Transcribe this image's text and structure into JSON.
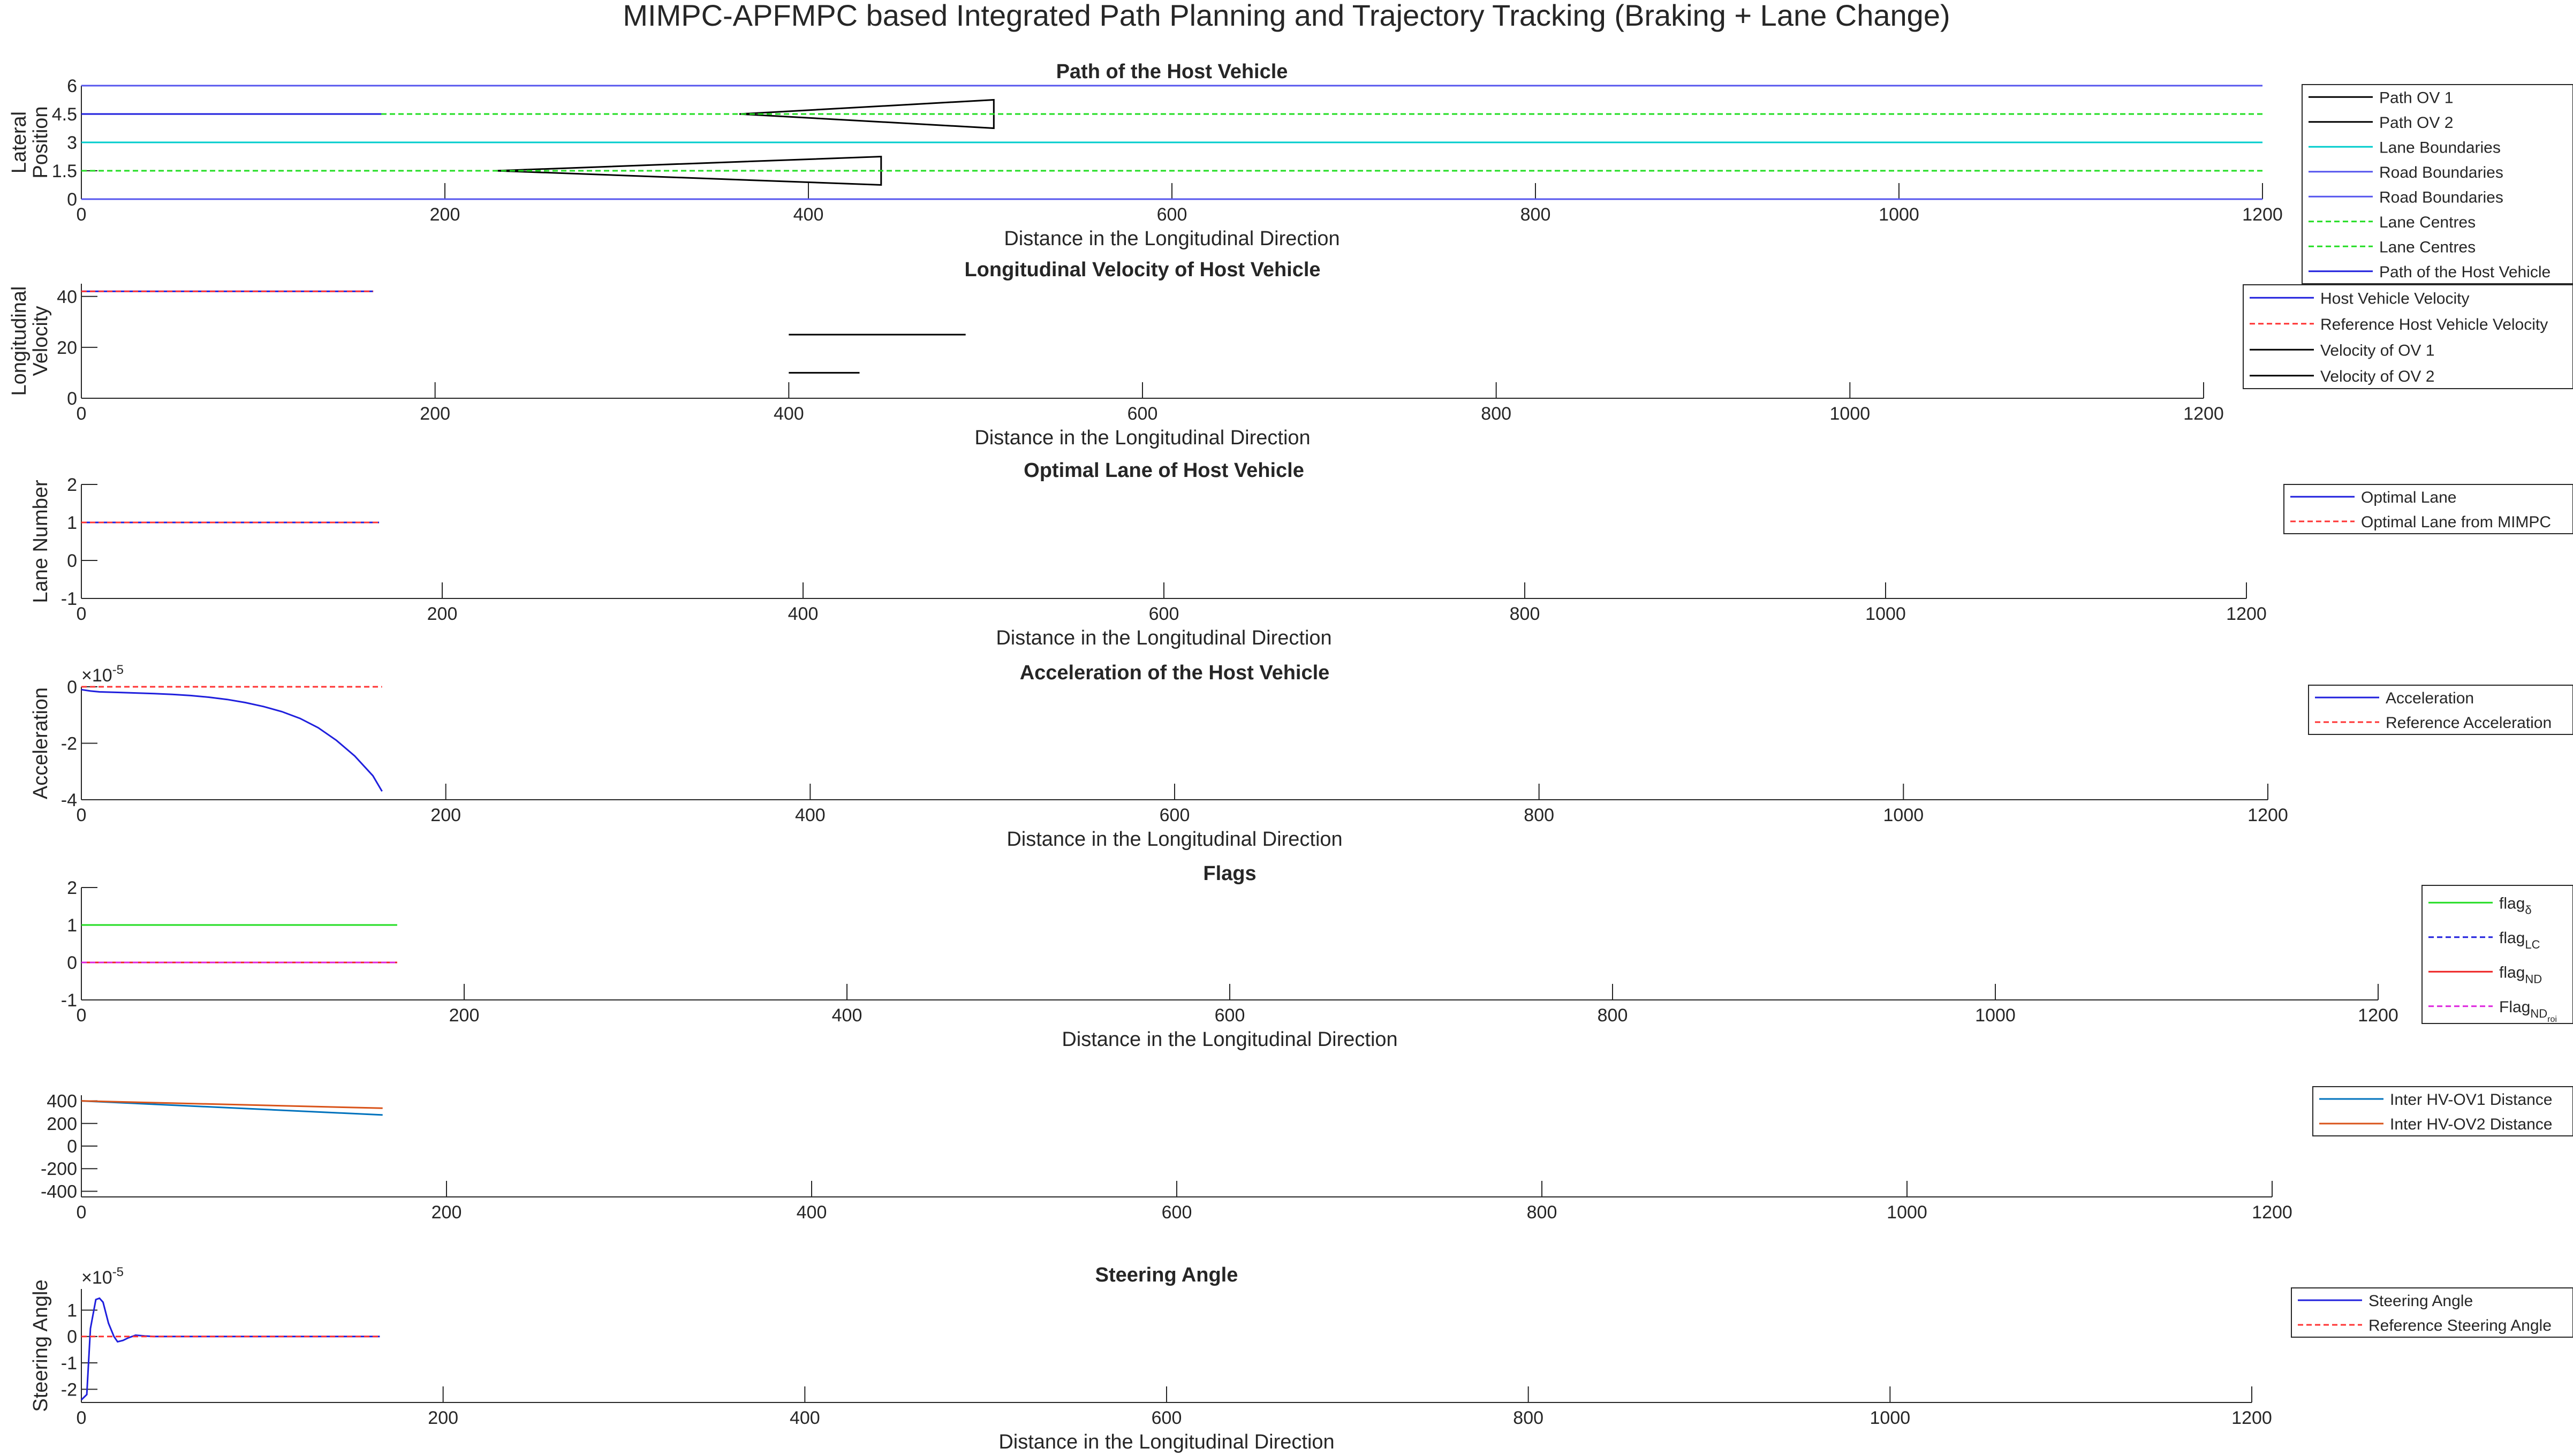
{
  "figure": {
    "title": "MIMPC-APFMPC based Integrated Path Planning and Trajectory Tracking (Braking + Lane Change)"
  },
  "chart_data": [
    {
      "type": "line",
      "title": "Path of the Host Vehicle",
      "xlabel": "Distance in the Longitudinal Direction",
      "ylabel": [
        "Lateral",
        "Position"
      ],
      "xlim": [
        0,
        1200
      ],
      "ylim": [
        0,
        6
      ],
      "xticks": [
        0,
        200,
        400,
        600,
        800,
        1000,
        1200
      ],
      "yticks": [
        0,
        1.5,
        3,
        4.5,
        6
      ],
      "yticklabels": [
        "0",
        "1.5",
        "3",
        "4.5",
        "6"
      ],
      "legend_position": "right",
      "series": [
        {
          "name": "Path OV 1",
          "color": "#000000",
          "dash": "solid",
          "x": [
            362,
            502,
            502,
            362
          ],
          "y": [
            4.5,
            5.25,
            3.75,
            4.5
          ]
        },
        {
          "name": "Path OV 2",
          "color": "#000000",
          "dash": "solid",
          "x": [
            228,
            440,
            440,
            228
          ],
          "y": [
            1.5,
            2.25,
            0.75,
            1.5
          ]
        },
        {
          "name": "Lane Boundaries",
          "color": "#00cccc",
          "dash": "solid",
          "x": [
            0,
            1200
          ],
          "y": [
            3,
            3
          ]
        },
        {
          "name": "Road Boundaries",
          "color": "#5555ee",
          "dash": "solid",
          "x": [
            0,
            1200
          ],
          "y": [
            6,
            6
          ]
        },
        {
          "name": "Road Boundaries",
          "color": "#5555ee",
          "dash": "solid",
          "x": [
            0,
            1200
          ],
          "y": [
            0,
            0
          ]
        },
        {
          "name": "Lane Centres",
          "color": "#22dd22",
          "dash": "dashed",
          "x": [
            0,
            1200
          ],
          "y": [
            4.5,
            4.5
          ]
        },
        {
          "name": "Lane Centres",
          "color": "#22dd22",
          "dash": "dashed",
          "x": [
            0,
            1200
          ],
          "y": [
            1.5,
            1.5
          ]
        },
        {
          "name": "Path of the Host Vehicle",
          "color": "#1f1fdd",
          "dash": "solid",
          "x": [
            0,
            165
          ],
          "y": [
            4.5,
            4.5
          ]
        }
      ]
    },
    {
      "type": "line",
      "title": "Longitudinal Velocity of Host Vehicle",
      "xlabel": "Distance in the Longitudinal Direction",
      "ylabel": [
        "Longitudinal",
        "Velocity"
      ],
      "xlim": [
        0,
        1200
      ],
      "ylim": [
        0,
        45
      ],
      "xticks": [
        0,
        200,
        400,
        600,
        800,
        1000,
        1200
      ],
      "yticks": [
        0,
        20,
        40
      ],
      "legend_position": "right",
      "series": [
        {
          "name": "Host Vehicle Velocity",
          "color": "#1f1fdd",
          "dash": "solid",
          "x": [
            0,
            165
          ],
          "y": [
            42,
            42
          ]
        },
        {
          "name": "Reference Host Vehicle Velocity",
          "color": "#ff3333",
          "dash": "dashed",
          "x": [
            0,
            165
          ],
          "y": [
            42,
            42
          ]
        },
        {
          "name": "Velocity of OV 1",
          "color": "#000000",
          "dash": "solid",
          "x": [
            400,
            500
          ],
          "y": [
            25,
            25
          ]
        },
        {
          "name": "Velocity of OV 2",
          "color": "#000000",
          "dash": "solid",
          "x": [
            400,
            440
          ],
          "y": [
            10,
            10
          ]
        }
      ]
    },
    {
      "type": "line",
      "title": "Optimal Lane of Host Vehicle",
      "xlabel": "Distance in the Longitudinal Direction",
      "ylabel": [
        "Lane Number"
      ],
      "xlim": [
        0,
        1200
      ],
      "ylim": [
        -1,
        2
      ],
      "xticks": [
        0,
        200,
        400,
        600,
        800,
        1000,
        1200
      ],
      "yticks": [
        -1,
        0,
        1,
        2
      ],
      "legend_position": "right",
      "series": [
        {
          "name": "Optimal Lane",
          "color": "#1f1fdd",
          "dash": "solid",
          "x": [
            0,
            165
          ],
          "y": [
            1,
            1
          ]
        },
        {
          "name": "Optimal Lane from MIMPC",
          "color": "#ff3333",
          "dash": "dashed",
          "x": [
            0,
            165
          ],
          "y": [
            1,
            1
          ]
        }
      ]
    },
    {
      "type": "line",
      "title": "Acceleration of the Host Vehicle",
      "xlabel": "Distance in the Longitudinal Direction",
      "ylabel": [
        "Acceleration"
      ],
      "y_exponent": "×10",
      "y_exponent_power": "-5",
      "xlim": [
        0,
        1200
      ],
      "ylim": [
        -4,
        0
      ],
      "xticks": [
        0,
        200,
        400,
        600,
        800,
        1000,
        1200
      ],
      "yticks": [
        -4,
        -2,
        0
      ],
      "legend_position": "right",
      "series": [
        {
          "name": "Acceleration",
          "color": "#1f1fdd",
          "dash": "solid",
          "x": [
            0,
            5,
            10,
            20,
            30,
            40,
            50,
            60,
            70,
            80,
            90,
            100,
            110,
            120,
            130,
            140,
            150,
            160,
            165
          ],
          "y": [
            -0.1,
            -0.15,
            -0.18,
            -0.2,
            -0.22,
            -0.24,
            -0.27,
            -0.31,
            -0.37,
            -0.45,
            -0.56,
            -0.7,
            -0.88,
            -1.12,
            -1.45,
            -1.9,
            -2.45,
            -3.15,
            -3.7
          ]
        },
        {
          "name": "Reference Acceleration",
          "color": "#ff3333",
          "dash": "dashed",
          "x": [
            0,
            165
          ],
          "y": [
            0,
            0
          ]
        }
      ]
    },
    {
      "type": "line",
      "title": "Flags",
      "xlabel": "Distance in the Longitudinal Direction",
      "ylabel": [],
      "xlim": [
        0,
        1200
      ],
      "ylim": [
        -1,
        2
      ],
      "xticks": [
        0,
        200,
        400,
        600,
        800,
        1000,
        1200
      ],
      "yticks": [
        -1,
        0,
        1,
        2
      ],
      "legend_position": "right",
      "series": [
        {
          "name": "flag",
          "sub": "δ",
          "color": "#22dd22",
          "dash": "solid",
          "x": [
            0,
            165
          ],
          "y": [
            1,
            1
          ]
        },
        {
          "name": "flag",
          "sub": "LC",
          "color": "#1f1fdd",
          "dash": "dashed",
          "x": [
            0,
            165
          ],
          "y": [
            0,
            0
          ]
        },
        {
          "name": "flag",
          "sub": "ND",
          "color": "#ee2222",
          "dash": "solid",
          "x": [
            0,
            165
          ],
          "y": [
            0,
            0
          ]
        },
        {
          "name": "Flag",
          "sub": "ND",
          "subsub": "roi",
          "color": "#dd22dd",
          "dash": "dashed",
          "x": [
            0,
            165
          ],
          "y": [
            0,
            0
          ]
        }
      ]
    },
    {
      "type": "line",
      "title": "",
      "xlabel": "",
      "ylabel": [],
      "xlim": [
        0,
        1200
      ],
      "ylim": [
        -450,
        450
      ],
      "xticks": [
        0,
        200,
        400,
        600,
        800,
        1000,
        1200
      ],
      "yticks": [
        -400,
        -200,
        0,
        200,
        400
      ],
      "legend_position": "right",
      "series": [
        {
          "name": "Inter HV-OV1 Distance",
          "color": "#0072bd",
          "dash": "solid",
          "x": [
            0,
            165
          ],
          "y": [
            400,
            275
          ]
        },
        {
          "name": "Inter HV-OV2 Distance",
          "color": "#d95319",
          "dash": "solid",
          "x": [
            0,
            165
          ],
          "y": [
            400,
            335
          ]
        }
      ]
    },
    {
      "type": "line",
      "title": "Steering Angle",
      "xlabel": "Distance in the Longitudinal Direction",
      "ylabel": [
        "Steering Angle"
      ],
      "y_exponent": "×10",
      "y_exponent_power": "-5",
      "xlim": [
        0,
        1200
      ],
      "ylim": [
        -2.5,
        1.8
      ],
      "xticks": [
        0,
        200,
        400,
        600,
        800,
        1000,
        1200
      ],
      "yticks": [
        -2,
        -1,
        0,
        1
      ],
      "legend_position": "right",
      "series": [
        {
          "name": "Steering Angle",
          "color": "#1f1fdd",
          "dash": "solid",
          "x": [
            0,
            3,
            5,
            8,
            10,
            12,
            15,
            18,
            20,
            23,
            26,
            30,
            35,
            40,
            50,
            60,
            80,
            100,
            165
          ],
          "y": [
            -2.4,
            -2.2,
            0.3,
            1.4,
            1.45,
            1.3,
            0.5,
            0.0,
            -0.2,
            -0.15,
            -0.05,
            0.05,
            0.02,
            0.0,
            0,
            0,
            0,
            0,
            0
          ]
        },
        {
          "name": "Reference Steering Angle",
          "color": "#ff3333",
          "dash": "dashed",
          "x": [
            0,
            165
          ],
          "y": [
            0,
            0
          ]
        }
      ]
    }
  ]
}
